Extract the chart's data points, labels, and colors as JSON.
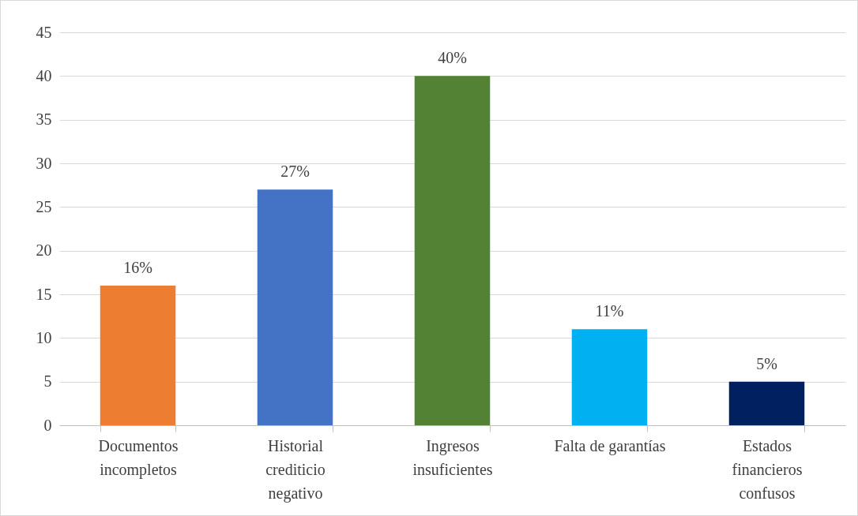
{
  "chart_data": {
    "type": "bar",
    "categories": [
      "Documentos incompletos",
      "Historial crediticio negativo",
      "Ingresos insuficientes",
      "Falta de garantías",
      "Estados financieros confusos"
    ],
    "values": [
      16,
      27,
      40,
      11,
      5
    ],
    "colors": [
      "#ed7d31",
      "#4472c4",
      "#548235",
      "#00b0f0",
      "#002060"
    ],
    "value_labels": [
      "16%",
      "27%",
      "40%",
      "11%",
      "5%"
    ],
    "ylim": [
      0,
      45
    ],
    "yticks": [
      0,
      5,
      10,
      15,
      20,
      25,
      30,
      35,
      40,
      45
    ],
    "grid": "y"
  }
}
